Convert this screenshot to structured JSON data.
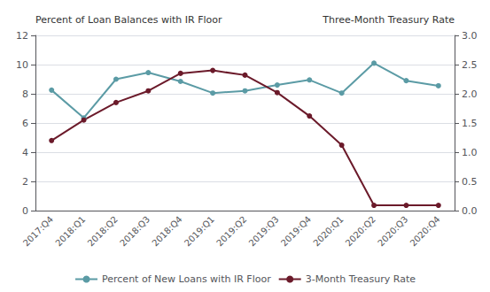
{
  "chart_data": {
    "type": "line",
    "categories": [
      "2017:Q4",
      "2018:Q1",
      "2018:Q2",
      "2018:Q3",
      "2018:Q4",
      "2019:Q1",
      "2019:Q2",
      "2019:Q3",
      "2019:Q4",
      "2020:Q1",
      "2020:Q2",
      "2020:Q3",
      "2020:Q4"
    ],
    "ylabel": "Percent of Loan Balances with IR Floor",
    "y2label": "Three-Month Treasury Rate",
    "series": [
      {
        "name": "Percent of New Loans with IR Floor",
        "color": "#5B9BA5",
        "marker": "circle",
        "values": [
          8.25,
          6.35,
          9.0,
          9.45,
          8.85,
          8.05,
          8.2,
          8.6,
          8.95,
          8.05,
          10.1,
          8.9,
          8.55
        ]
      },
      {
        "name": "3-Month Treasury Rate",
        "color": "#6B1A2A",
        "marker": "circle",
        "axis": "y2",
        "values": [
          1.2,
          1.55,
          1.85,
          2.05,
          2.35,
          2.4,
          2.32,
          2.02,
          1.62,
          1.12,
          0.09,
          0.09,
          0.09
        ]
      }
    ],
    "ylim": [
      0,
      12
    ],
    "yticks": [
      0,
      2,
      4,
      6,
      8,
      10,
      12
    ],
    "y2lim": [
      0,
      3.0
    ],
    "y2ticks": [
      {
        "value": 0,
        "label": "0.0"
      },
      0.5,
      {
        "value": 1,
        "label": "1.0"
      },
      1.5,
      {
        "value": 2,
        "label": "2.0"
      },
      2.5,
      {
        "value": 3,
        "label": "3.0"
      }
    ],
    "grid": true,
    "legend": "bottom"
  }
}
